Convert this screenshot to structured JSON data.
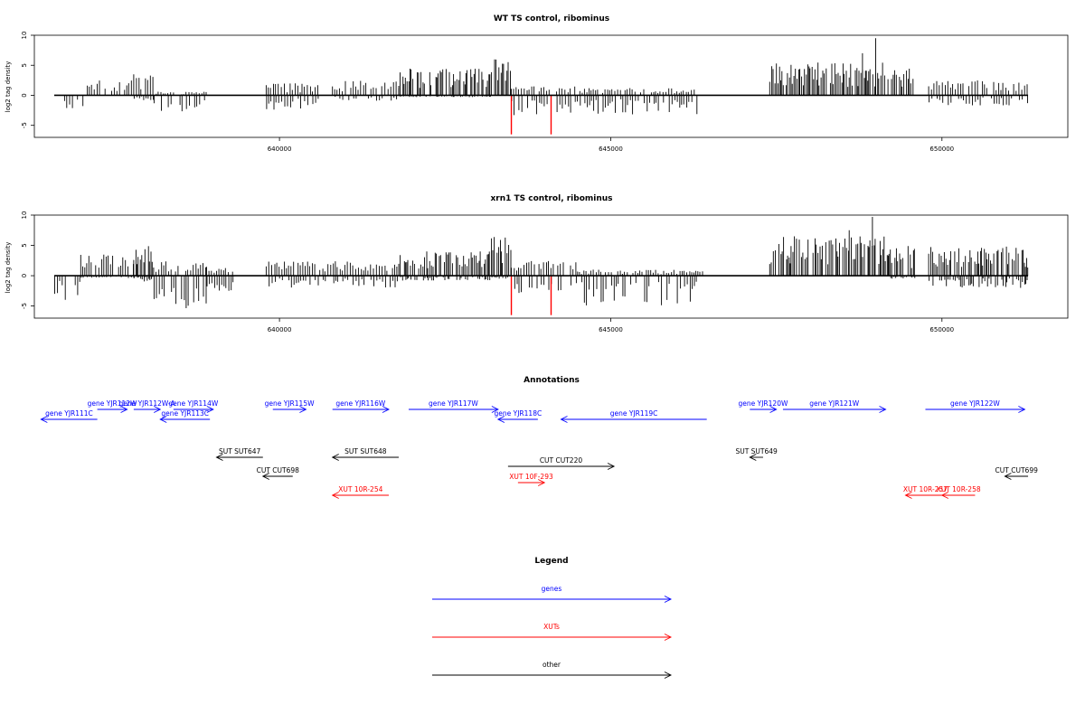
{
  "colors": {
    "gene": "#0000ff",
    "xut": "#ff0000",
    "other": "#000000",
    "signal": "#000000",
    "highlight": "#ff0000"
  },
  "chart_data": [
    {
      "type": "bar",
      "title": "WT TS control, ribominus",
      "ylabel": "log2 tag density",
      "xlim": [
        636300,
        651900
      ],
      "ylim": [
        -7,
        10
      ],
      "xticks": [
        640000,
        645000,
        650000
      ],
      "xtick_labels": [
        "640000",
        "645000",
        "650000"
      ],
      "yticks": [
        -5,
        0,
        5,
        10
      ],
      "ytick_labels": [
        "-5",
        "0",
        "5",
        "10"
      ],
      "track_range": [
        636600,
        651300
      ],
      "regions": [
        {
          "start": 636650,
          "end": 637100,
          "pos_max": 0,
          "neg_max": 2.8
        },
        {
          "start": 637100,
          "end": 637800,
          "pos_max": 2.5,
          "neg_max": 0
        },
        {
          "start": 637800,
          "end": 638100,
          "pos_max": 3.5,
          "neg_max": 0.8
        },
        {
          "start": 638100,
          "end": 638900,
          "pos_max": 0.6,
          "neg_max": 2.8
        },
        {
          "start": 639800,
          "end": 640600,
          "pos_max": 2.0,
          "neg_max": 2.5
        },
        {
          "start": 640800,
          "end": 641800,
          "pos_max": 2.5,
          "neg_max": 1.0
        },
        {
          "start": 641800,
          "end": 643200,
          "pos_max": 4.5,
          "neg_max": 0.3
        },
        {
          "start": 643200,
          "end": 643500,
          "pos_max": 6.0,
          "neg_max": 0
        },
        {
          "start": 643500,
          "end": 644500,
          "pos_max": 1.5,
          "neg_max": 3.5
        },
        {
          "start": 644500,
          "end": 646300,
          "pos_max": 1.2,
          "neg_max": 3.2
        },
        {
          "start": 647400,
          "end": 649600,
          "pos_max": 5.5,
          "neg_max": 0
        },
        {
          "start": 649800,
          "end": 651300,
          "pos_max": 2.5,
          "neg_max": 1.8
        }
      ],
      "peaks": [
        {
          "x": 649000,
          "y": 9.5
        },
        {
          "x": 648800,
          "y": 7.0
        }
      ],
      "highlights": [
        {
          "x": 643500,
          "y": -6.5
        },
        {
          "x": 644100,
          "y": -6.5
        }
      ]
    },
    {
      "type": "bar",
      "title": "xrn1 TS control, ribominus",
      "ylabel": "log2 tag density",
      "xlim": [
        636300,
        651900
      ],
      "ylim": [
        -7,
        10
      ],
      "xticks": [
        640000,
        645000,
        650000
      ],
      "xtick_labels": [
        "640000",
        "645000",
        "650000"
      ],
      "yticks": [
        -5,
        0,
        5,
        10
      ],
      "ytick_labels": [
        "-5",
        "0",
        "5",
        "10"
      ],
      "track_range": [
        636600,
        651300
      ],
      "regions": [
        {
          "start": 636600,
          "end": 637000,
          "pos_max": 0,
          "neg_max": 4.0
        },
        {
          "start": 637000,
          "end": 637800,
          "pos_max": 3.5,
          "neg_max": 0.4
        },
        {
          "start": 637800,
          "end": 638100,
          "pos_max": 5.5,
          "neg_max": 1.0
        },
        {
          "start": 638100,
          "end": 638900,
          "pos_max": 2.5,
          "neg_max": 6.0
        },
        {
          "start": 638900,
          "end": 639300,
          "pos_max": 1.5,
          "neg_max": 2.5
        },
        {
          "start": 639800,
          "end": 641800,
          "pos_max": 2.5,
          "neg_max": 2.0
        },
        {
          "start": 641800,
          "end": 643200,
          "pos_max": 4.0,
          "neg_max": 0.8
        },
        {
          "start": 643200,
          "end": 643500,
          "pos_max": 6.5,
          "neg_max": 0.5
        },
        {
          "start": 643500,
          "end": 644500,
          "pos_max": 2.5,
          "neg_max": 3.5
        },
        {
          "start": 644500,
          "end": 646400,
          "pos_max": 1.0,
          "neg_max": 5.0
        },
        {
          "start": 647400,
          "end": 649200,
          "pos_max": 6.5,
          "neg_max": 0
        },
        {
          "start": 649200,
          "end": 649600,
          "pos_max": 5.0,
          "neg_max": 0.5
        },
        {
          "start": 649800,
          "end": 651300,
          "pos_max": 5.0,
          "neg_max": 2.0
        }
      ],
      "peaks": [
        {
          "x": 648950,
          "y": 9.7
        },
        {
          "x": 648600,
          "y": 7.5
        }
      ],
      "highlights": [
        {
          "x": 643500,
          "y": -6.5
        },
        {
          "x": 644100,
          "y": -6.5
        }
      ]
    }
  ],
  "annotations": {
    "title": "Annotations",
    "features": [
      {
        "label": "gene YJR111C",
        "type": "gene",
        "strand": "-",
        "start": 636400,
        "end": 637250,
        "row": 1
      },
      {
        "label": "gene YJR112W",
        "type": "gene",
        "strand": "+",
        "start": 637250,
        "end": 637700,
        "row": 0
      },
      {
        "label": "gene YJR112W-A",
        "type": "gene",
        "strand": "+",
        "start": 637800,
        "end": 638200,
        "row": 0
      },
      {
        "label": "gene YJR113C",
        "type": "gene",
        "strand": "-",
        "start": 638200,
        "end": 638950,
        "row": 1
      },
      {
        "label": "gene YJR114W",
        "type": "gene",
        "strand": "+",
        "start": 638400,
        "end": 639000,
        "row": 0
      },
      {
        "label": "gene YJR115W",
        "type": "gene",
        "strand": "+",
        "start": 639900,
        "end": 640400,
        "row": 0
      },
      {
        "label": "gene YJR116W",
        "type": "gene",
        "strand": "+",
        "start": 640800,
        "end": 641650,
        "row": 0
      },
      {
        "label": "gene YJR117W",
        "type": "gene",
        "strand": "+",
        "start": 641950,
        "end": 643300,
        "row": 0
      },
      {
        "label": "gene YJR118C",
        "type": "gene",
        "strand": "-",
        "start": 643300,
        "end": 643900,
        "row": 1
      },
      {
        "label": "gene YJR119C",
        "type": "gene",
        "strand": "-",
        "start": 644250,
        "end": 646450,
        "row": 1
      },
      {
        "label": "gene YJR120W",
        "type": "gene",
        "strand": "+",
        "start": 647100,
        "end": 647500,
        "row": 0
      },
      {
        "label": "gene YJR121W",
        "type": "gene",
        "strand": "+",
        "start": 647600,
        "end": 649150,
        "row": 0
      },
      {
        "label": "gene YJR122W",
        "type": "gene",
        "strand": "+",
        "start": 649750,
        "end": 651250,
        "row": 0
      },
      {
        "label": "SUT SUT647",
        "type": "other",
        "strand": "-",
        "start": 639050,
        "end": 639750,
        "row": 2
      },
      {
        "label": "SUT SUT648",
        "type": "other",
        "strand": "-",
        "start": 640800,
        "end": 641800,
        "row": 2
      },
      {
        "label": "SUT SUT649",
        "type": "other",
        "strand": "-",
        "start": 647100,
        "end": 647300,
        "row": 2
      },
      {
        "label": "CUT CUT220",
        "type": "other",
        "strand": "+",
        "start": 643450,
        "end": 645050,
        "row": 3
      },
      {
        "label": "CUT CUT698",
        "type": "other",
        "strand": "-",
        "start": 639750,
        "end": 640200,
        "row": 4
      },
      {
        "label": "CUT CUT699",
        "type": "other",
        "strand": "-",
        "start": 650950,
        "end": 651300,
        "row": 4
      },
      {
        "label": "XUT 10F-293",
        "type": "xut",
        "strand": "+",
        "start": 643600,
        "end": 644000,
        "row": 5
      },
      {
        "label": "XUT 10R-254",
        "type": "xut",
        "strand": "-",
        "start": 640800,
        "end": 641650,
        "row": 6
      },
      {
        "label": "XUT 10R-257",
        "type": "xut",
        "strand": "-",
        "start": 649450,
        "end": 650050,
        "row": 6
      },
      {
        "label": "XUT 10R-258",
        "type": "xut",
        "strand": "-",
        "start": 650000,
        "end": 650500,
        "row": 6
      }
    ]
  },
  "legend": {
    "title": "Legend",
    "items": [
      {
        "label": "genes",
        "type": "gene"
      },
      {
        "label": "XUTs",
        "type": "xut"
      },
      {
        "label": "other",
        "type": "other"
      }
    ]
  }
}
